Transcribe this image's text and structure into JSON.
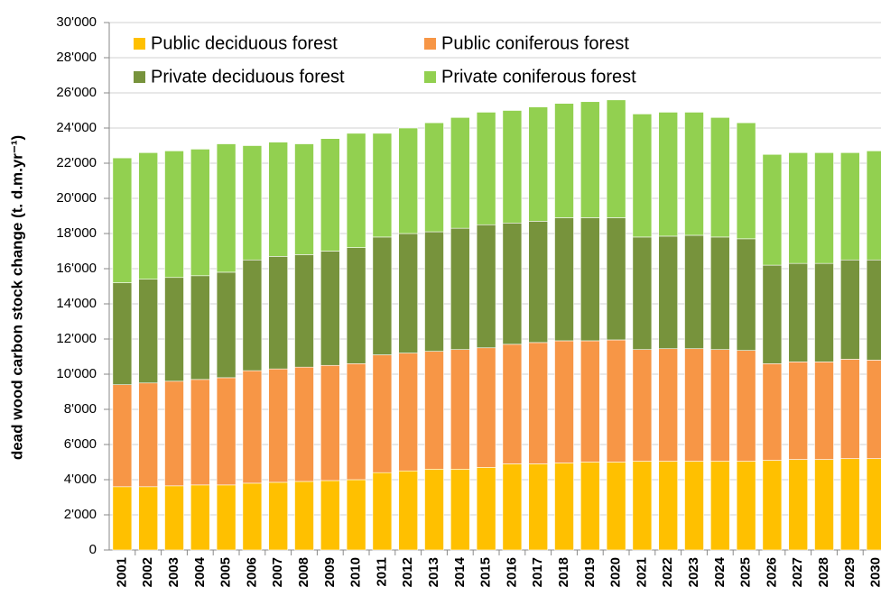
{
  "chart_data": {
    "type": "stacked_bar",
    "y_label": "dead wood carbon stock change (t. d.m.yr⁻¹)",
    "categories": [
      "2001",
      "2002",
      "2003",
      "2004",
      "2005",
      "2006",
      "2007",
      "2008",
      "2009",
      "2010",
      "2011",
      "2012",
      "2013",
      "2014",
      "2015",
      "2016",
      "2017",
      "2018",
      "2019",
      "2020",
      "2021",
      "2022",
      "2023",
      "2024",
      "2025",
      "2026",
      "2027",
      "2028",
      "2029",
      "2030"
    ],
    "series": [
      {
        "name": "Public deciduous forest",
        "color": "#FFC000",
        "values": [
          3600,
          3600,
          3650,
          3700,
          3700,
          3800,
          3850,
          3900,
          3950,
          4000,
          4400,
          4500,
          4600,
          4600,
          4700,
          4900,
          4900,
          4950,
          5000,
          5000,
          5050,
          5050,
          5050,
          5050,
          5050,
          5100,
          5150,
          5150,
          5200,
          5200
        ]
      },
      {
        "name": "Public coniferous forest",
        "color": "#F79646",
        "values": [
          5800,
          5900,
          5950,
          6000,
          6100,
          6400,
          6450,
          6500,
          6550,
          6600,
          6700,
          6700,
          6700,
          6800,
          6800,
          6800,
          6900,
          6950,
          6900,
          6950,
          6350,
          6400,
          6400,
          6350,
          6300,
          5500,
          5550,
          5550,
          5650,
          5600
        ]
      },
      {
        "name": "Private deciduous forest",
        "color": "#77933C",
        "values": [
          5800,
          5900,
          5900,
          5900,
          6000,
          6300,
          6400,
          6400,
          6500,
          6600,
          6700,
          6800,
          6800,
          6900,
          7000,
          6900,
          6900,
          7000,
          7000,
          6950,
          6400,
          6400,
          6450,
          6400,
          6350,
          5600,
          5600,
          5600,
          5650,
          5700
        ]
      },
      {
        "name": "Private coniferous forest",
        "color": "#92D050",
        "values": [
          7100,
          7200,
          7200,
          7200,
          7300,
          6500,
          6500,
          6300,
          6400,
          6500,
          5900,
          6000,
          6200,
          6300,
          6400,
          6400,
          6500,
          6500,
          6600,
          6700,
          7000,
          7050,
          7000,
          6800,
          6600,
          6300,
          6300,
          6300,
          6100,
          6200
        ]
      }
    ],
    "ylim": [
      0,
      30000
    ],
    "yticks": [
      0,
      {
        "value": 2000,
        "label": "2'000"
      },
      {
        "value": 4000,
        "label": "4'000"
      },
      {
        "value": 6000,
        "label": "6'000"
      },
      {
        "value": 8000,
        "label": "8'000"
      },
      {
        "value": 10000,
        "label": "10'000"
      },
      {
        "value": 12000,
        "label": "12'000"
      },
      {
        "value": 14000,
        "label": "14'000"
      },
      {
        "value": 16000,
        "label": "16'000"
      },
      {
        "value": 18000,
        "label": "18'000"
      },
      {
        "value": 20000,
        "label": "20'000"
      },
      {
        "value": 22000,
        "label": "22'000"
      },
      {
        "value": 24000,
        "label": "24'000"
      },
      {
        "value": 26000,
        "label": "26'000"
      },
      {
        "value": 28000,
        "label": "28'000"
      },
      {
        "value": 30000,
        "label": "30'000"
      }
    ],
    "grid": true,
    "legend": "top-left"
  }
}
